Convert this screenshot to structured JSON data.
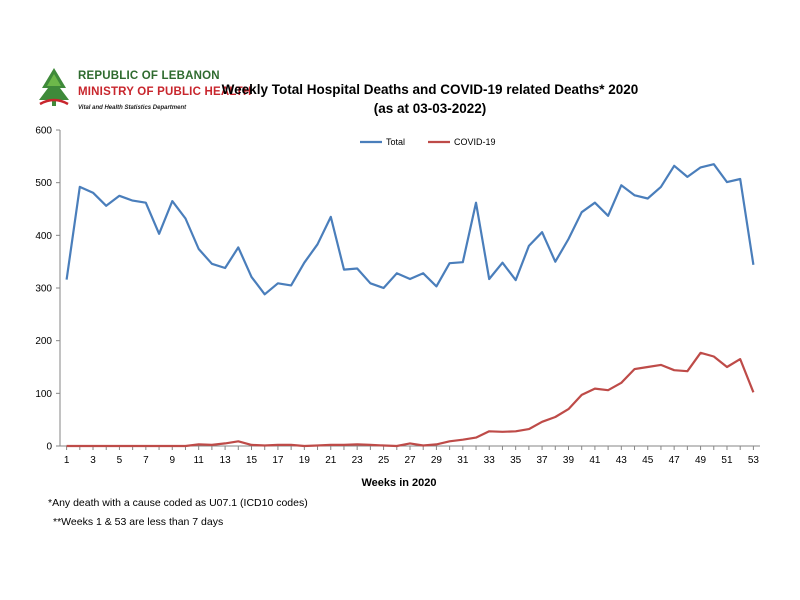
{
  "logo": {
    "line1": "REPUBLIC OF LEBANON",
    "line2": "MINISTRY OF PUBLIC HEALTH",
    "line3": "Vital and Health Statistics Department"
  },
  "chart_data": {
    "type": "line",
    "title": "Weekly Total Hospital Deaths and COVID-19 related Deaths* 2020",
    "subtitle": "(as at 03-03-2022)",
    "xlabel": "Weeks in 2020",
    "ylabel": "",
    "ylim": [
      0,
      600
    ],
    "yticks": [
      0,
      100,
      200,
      300,
      400,
      500,
      600
    ],
    "xticks": [
      1,
      3,
      5,
      7,
      9,
      11,
      13,
      15,
      17,
      19,
      21,
      23,
      25,
      27,
      29,
      31,
      33,
      35,
      37,
      39,
      41,
      43,
      45,
      47,
      49,
      51,
      53
    ],
    "grid": false,
    "legend_position": "top-center",
    "x": [
      1,
      2,
      3,
      4,
      5,
      6,
      7,
      8,
      9,
      10,
      11,
      12,
      13,
      14,
      15,
      16,
      17,
      18,
      19,
      20,
      21,
      22,
      23,
      24,
      25,
      26,
      27,
      28,
      29,
      30,
      31,
      32,
      33,
      34,
      35,
      36,
      37,
      38,
      39,
      40,
      41,
      42,
      43,
      44,
      45,
      46,
      47,
      48,
      49,
      50,
      51,
      52,
      53
    ],
    "series": [
      {
        "name": "Total",
        "color": "#4a7ebb",
        "values": [
          316,
          492,
          481,
          456,
          475,
          466,
          462,
          403,
          465,
          432,
          374,
          346,
          338,
          377,
          321,
          288,
          309,
          305,
          348,
          383,
          435,
          335,
          337,
          309,
          300,
          328,
          317,
          328,
          303,
          347,
          349,
          462,
          317,
          348,
          315,
          380,
          406,
          350,
          393,
          444,
          462,
          437,
          495,
          476,
          470,
          492,
          532,
          511,
          529,
          535,
          501,
          507,
          344
        ]
      },
      {
        "name": "COVID-19",
        "color": "#be4b48",
        "values": [
          0,
          0,
          0,
          0,
          0,
          0,
          0,
          0,
          0,
          0,
          3,
          2,
          5,
          9,
          2,
          1,
          2,
          2,
          0,
          1,
          2,
          2,
          3,
          2,
          1,
          0,
          5,
          1,
          3,
          9,
          12,
          16,
          28,
          27,
          28,
          32,
          46,
          55,
          70,
          97,
          109,
          106,
          120,
          146,
          150,
          154,
          144,
          142,
          177,
          170,
          150,
          165,
          102
        ]
      }
    ]
  },
  "footnotes": {
    "note1": "*Any death with a cause coded as  U07.1 (ICD10 codes)",
    "note2": "**Weeks 1 & 53 are less than 7 days"
  }
}
